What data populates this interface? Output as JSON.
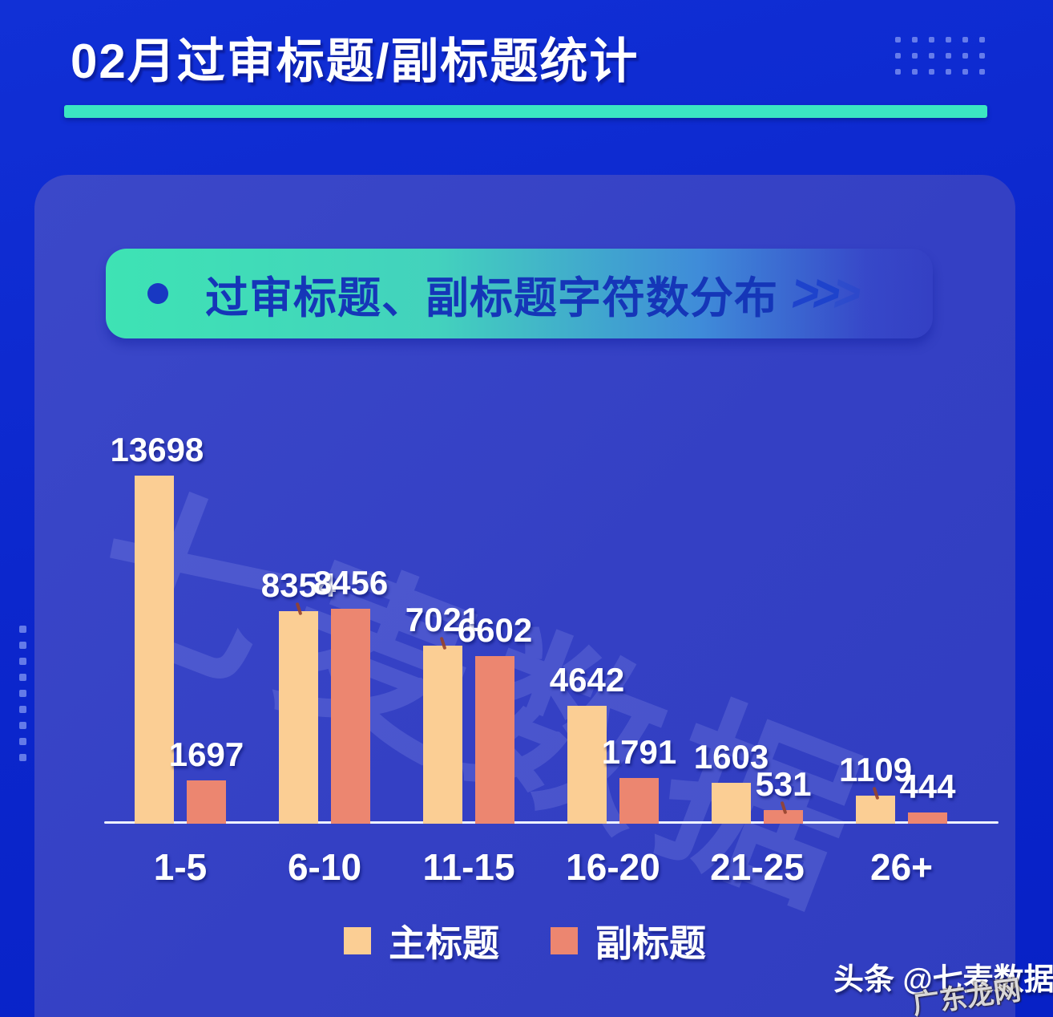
{
  "header": {
    "title": "02月过审标题/副标题统计"
  },
  "banner": {
    "label": "过审标题、副标题字符数分布",
    "arrows": ">>>"
  },
  "chart_data": {
    "type": "bar",
    "title": "过审标题、副标题字符数分布",
    "categories": [
      "1-5",
      "6-10",
      "11-15",
      "16-20",
      "21-25",
      "26+"
    ],
    "series": [
      {
        "name": "主标题",
        "color": "#FBCE94",
        "values": [
          13698,
          8354,
          7021,
          4642,
          1603,
          1109
        ]
      },
      {
        "name": "副标题",
        "color": "#EC8670",
        "values": [
          1697,
          8456,
          6602,
          1791,
          531,
          444
        ]
      }
    ],
    "xlabel": "",
    "ylabel": "",
    "ylim": [
      0,
      13698
    ],
    "grid": false,
    "value_labels": true,
    "legend_position": "bottom",
    "leader_ticks": [
      {
        "category": "6-10",
        "series": "主标题"
      },
      {
        "category": "11-15",
        "series": "主标题"
      },
      {
        "category": "21-25",
        "series": "副标题"
      },
      {
        "category": "26+",
        "series": "主标题"
      }
    ]
  },
  "watermarks": {
    "large": "七麦数据",
    "corner": "广东龙网"
  },
  "footer": {
    "credit": "头条 @七麦数据"
  },
  "colors": {
    "background": "#0C26CC",
    "panel": "#3541C4",
    "accent_teal": "#3DE6C0",
    "banner_text": "#1536B8",
    "main_bar": "#FBCE94",
    "sub_bar": "#EC8670",
    "label_text": "#FFFFFF"
  }
}
